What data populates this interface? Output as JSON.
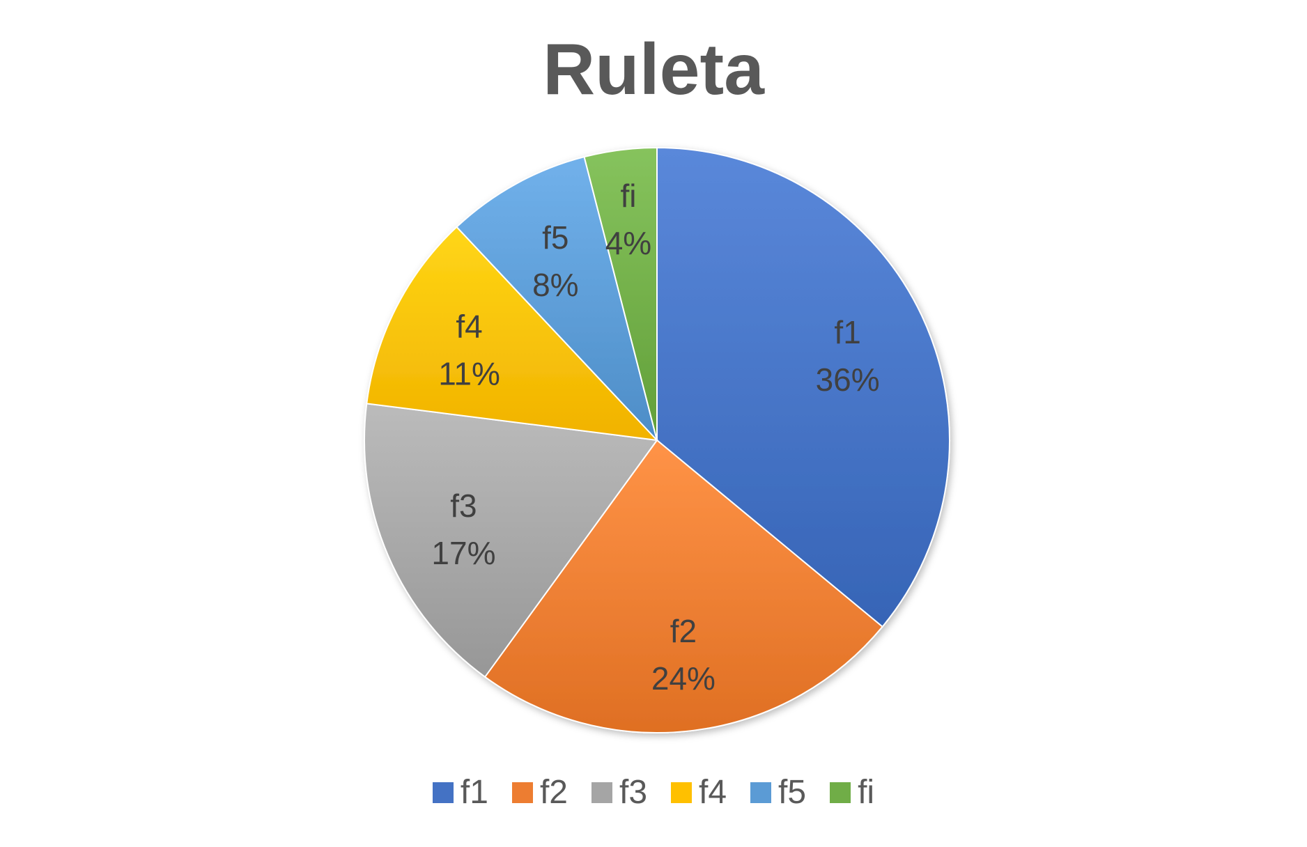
{
  "chart_data": {
    "type": "pie",
    "title": "Ruleta",
    "categories": [
      "f1",
      "f2",
      "f3",
      "f4",
      "f5",
      "fi"
    ],
    "values": [
      36,
      24,
      17,
      11,
      8,
      4
    ],
    "value_labels": [
      "36%",
      "24%",
      "17%",
      "11%",
      "8%",
      "4%"
    ],
    "colors": [
      "#4472C4",
      "#ED7D31",
      "#A5A5A5",
      "#FFC000",
      "#5B9BD5",
      "#70AD47"
    ],
    "legend": "bottom",
    "data_labels": "category and percent inside slices"
  }
}
